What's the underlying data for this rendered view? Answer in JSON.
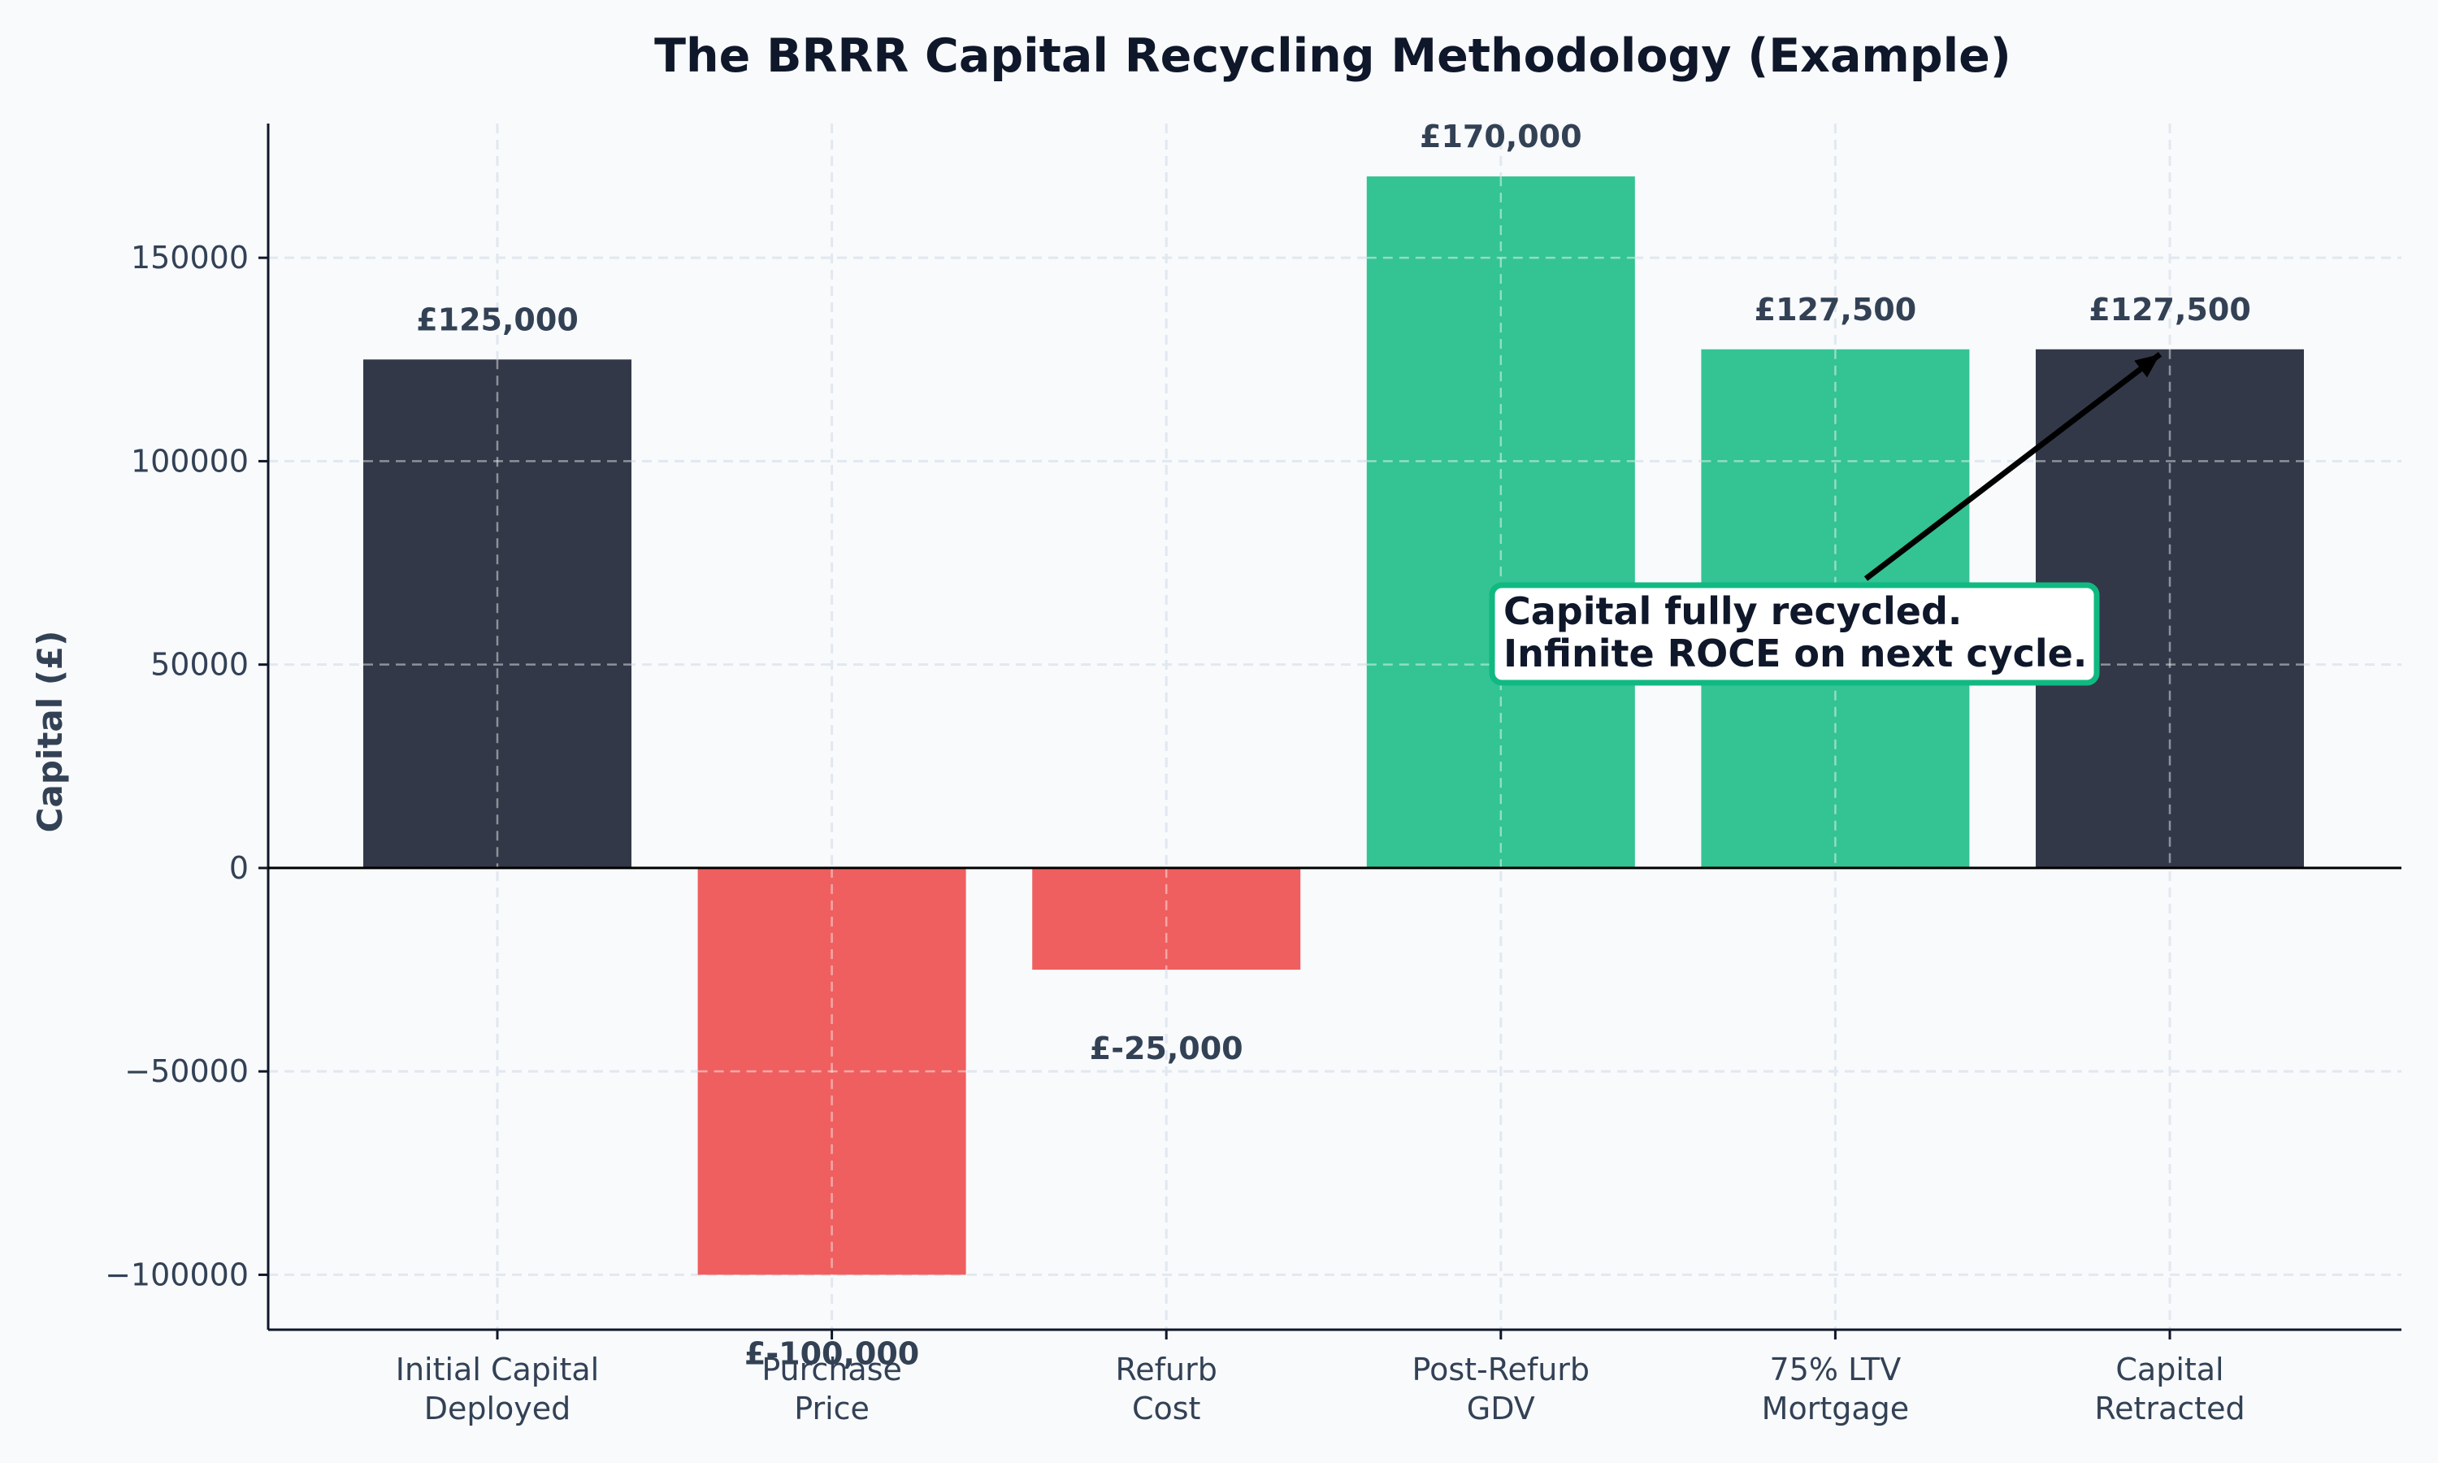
{
  "chart_data": {
    "type": "bar",
    "title": "The BRRR Capital Recycling Methodology (Example)",
    "xlabel": "",
    "ylabel": "Capital (£)",
    "categories": [
      [
        "Initial Capital",
        "Deployed"
      ],
      [
        "Purchase",
        "Price"
      ],
      [
        "Refurb",
        "Cost"
      ],
      [
        "Post-Refurb",
        "GDV"
      ],
      [
        "75% LTV",
        "Mortgage"
      ],
      [
        "Capital",
        "Retracted"
      ]
    ],
    "values": [
      125000,
      -100000,
      -25000,
      170000,
      127500,
      127500
    ],
    "value_labels": [
      "£125,000",
      "£-100,000",
      "£-25,000",
      "£170,000",
      "£127,500",
      "£127,500"
    ],
    "bar_colors": [
      "#323848",
      "#ef5f5f",
      "#ef5f5f",
      "#34c393",
      "#34c393",
      "#323848"
    ],
    "ylim": [
      -113500,
      183000
    ],
    "yticks": [
      -100000,
      -50000,
      0,
      50000,
      100000,
      150000
    ],
    "ytick_labels": [
      "−100000",
      "−50000",
      "0",
      "50000",
      "100000",
      "150000"
    ],
    "grid": true,
    "annotation": {
      "lines": [
        "Capital fully recycled.",
        "Infinite ROCE on next cycle."
      ],
      "border_color": "#10b981",
      "points_to_category": 5
    }
  },
  "colors": {
    "background": "#f8fafc",
    "axis": "#0f172a",
    "grid": "#e2e8f0",
    "text": "#334155"
  }
}
